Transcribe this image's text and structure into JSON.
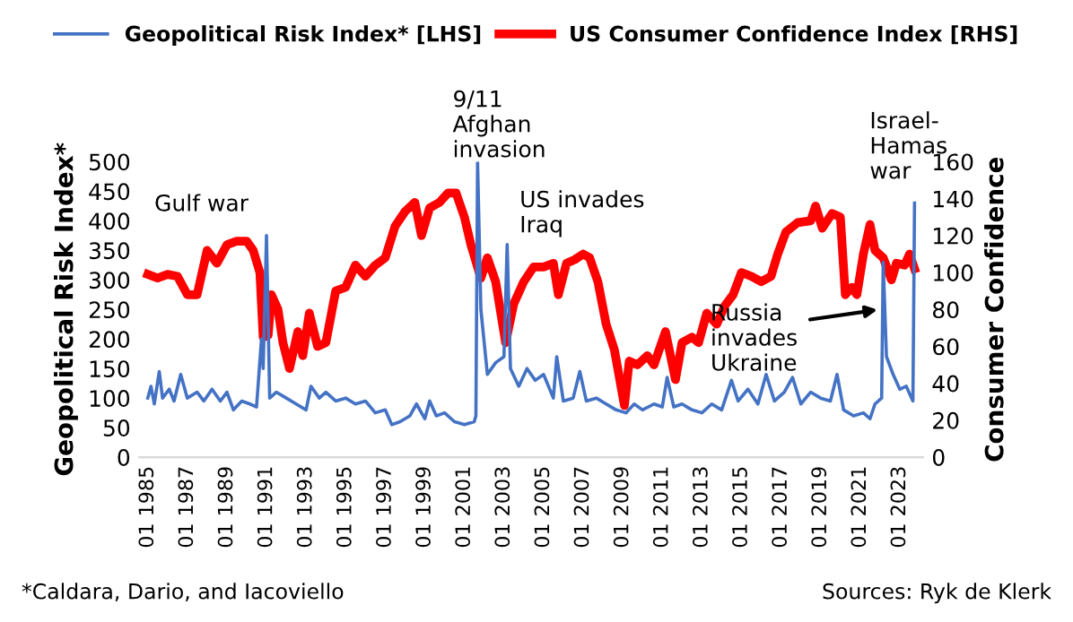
{
  "chart_data": {
    "type": "line",
    "ylabel": "Geopolitical Risk Index*",
    "y2label": "Consumer Confidence",
    "xlim": [
      "1984-08",
      "2024-03"
    ],
    "xticks": [
      {
        "value": "1985-01",
        "label": "01 1985"
      },
      {
        "value": "1987-01",
        "label": "01 1987"
      },
      {
        "value": "1989-01",
        "label": "01 1989"
      },
      {
        "value": "1991-01",
        "label": "01 1991"
      },
      {
        "value": "1993-01",
        "label": "01 1993"
      },
      {
        "value": "1995-01",
        "label": "01 1995"
      },
      {
        "value": "1997-01",
        "label": "01 1997"
      },
      {
        "value": "1999-01",
        "label": "01 1999"
      },
      {
        "value": "2001-01",
        "label": "01 2001"
      },
      {
        "value": "2003-01",
        "label": "01 2003"
      },
      {
        "value": "2005-01",
        "label": "01 2005"
      },
      {
        "value": "2007-01",
        "label": "01 2007"
      },
      {
        "value": "2009-01",
        "label": "01 2009"
      },
      {
        "value": "2011-01",
        "label": "01 2011"
      },
      {
        "value": "2013-01",
        "label": "01 2013"
      },
      {
        "value": "2015-01",
        "label": "01 2015"
      },
      {
        "value": "2017-01",
        "label": "01 2017"
      },
      {
        "value": "2019-01",
        "label": "01 2019"
      },
      {
        "value": "2021-01",
        "label": "01 2021"
      },
      {
        "value": "2023-01",
        "label": "01 2023"
      }
    ],
    "ylim": [
      0,
      500
    ],
    "yticks": [
      0,
      50,
      100,
      150,
      200,
      250,
      300,
      350,
      400,
      450,
      500
    ],
    "y2lim": [
      0,
      160
    ],
    "y2ticks": [
      0,
      20,
      40,
      60,
      80,
      100,
      120,
      140,
      160
    ],
    "grid": false,
    "legend": "top",
    "marker": "none",
    "series": [
      {
        "name": "Geopolitical Risk Index* [LHS]",
        "color": "#4472c4",
        "x": [
          "1985-01",
          "1985-03",
          "1985-05",
          "1985-08",
          "1985-10",
          "1986-02",
          "1986-05",
          "1986-09",
          "1987-01",
          "1987-07",
          "1987-11",
          "1988-04",
          "1988-09",
          "1989-01",
          "1989-05",
          "1989-10",
          "1990-03",
          "1990-07",
          "1990-10",
          "1990-11",
          "1991-01",
          "1991-03",
          "1991-07",
          "1992-01",
          "1992-07",
          "1993-01",
          "1993-04",
          "1993-09",
          "1994-01",
          "1994-07",
          "1995-01",
          "1995-07",
          "1996-01",
          "1996-07",
          "1997-01",
          "1997-05",
          "1997-10",
          "1998-04",
          "1998-08",
          "1999-01",
          "1999-04",
          "1999-08",
          "2000-01",
          "2000-07",
          "2001-01",
          "2001-07",
          "2001-08",
          "2001-09",
          "2001-11",
          "2002-03",
          "2002-08",
          "2003-01",
          "2003-03",
          "2003-05",
          "2003-10",
          "2004-03",
          "2004-08",
          "2005-01",
          "2005-07",
          "2005-09",
          "2006-01",
          "2006-07",
          "2006-11",
          "2007-03",
          "2007-09",
          "2008-03",
          "2008-09",
          "2009-03",
          "2009-08",
          "2010-01",
          "2010-08",
          "2011-01",
          "2011-04",
          "2011-08",
          "2012-01",
          "2012-07",
          "2013-01",
          "2013-07",
          "2014-01",
          "2014-07",
          "2014-11",
          "2015-05",
          "2015-11",
          "2016-04",
          "2016-09",
          "2017-03",
          "2017-08",
          "2018-01",
          "2018-07",
          "2019-01",
          "2019-07",
          "2019-11",
          "2020-03",
          "2020-09",
          "2021-03",
          "2021-07",
          "2021-10",
          "2022-02",
          "2022-03",
          "2022-05",
          "2022-09",
          "2023-01",
          "2023-05",
          "2023-09",
          "2023-10"
        ],
        "values": [
          100,
          120,
          90,
          145,
          100,
          115,
          95,
          140,
          100,
          110,
          95,
          115,
          95,
          110,
          80,
          95,
          90,
          85,
          200,
          150,
          375,
          100,
          110,
          100,
          90,
          80,
          120,
          100,
          110,
          95,
          100,
          90,
          95,
          75,
          80,
          55,
          60,
          70,
          90,
          65,
          95,
          70,
          75,
          60,
          55,
          60,
          70,
          500,
          250,
          140,
          160,
          170,
          360,
          150,
          120,
          150,
          130,
          140,
          100,
          170,
          95,
          100,
          145,
          95,
          100,
          90,
          80,
          75,
          90,
          80,
          90,
          85,
          135,
          85,
          90,
          80,
          75,
          90,
          80,
          130,
          95,
          115,
          90,
          140,
          95,
          110,
          135,
          90,
          110,
          100,
          95,
          140,
          80,
          70,
          75,
          65,
          90,
          100,
          330,
          170,
          140,
          115,
          120,
          95,
          430
        ]
      },
      {
        "name": "US Consumer Confidence Index [RHS]",
        "color": "#ff0000",
        "axis": "y2",
        "x": [
          "1985-01",
          "1985-07",
          "1986-01",
          "1986-07",
          "1987-01",
          "1987-07",
          "1988-01",
          "1988-07",
          "1989-01",
          "1989-07",
          "1990-01",
          "1990-05",
          "1990-09",
          "1990-11",
          "1991-02",
          "1991-04",
          "1991-08",
          "1991-11",
          "1992-03",
          "1992-08",
          "1992-11",
          "1993-03",
          "1993-08",
          "1994-01",
          "1994-07",
          "1995-01",
          "1995-07",
          "1996-01",
          "1996-07",
          "1997-01",
          "1997-07",
          "1998-01",
          "1998-07",
          "1998-11",
          "1999-04",
          "1999-10",
          "2000-03",
          "2000-08",
          "2001-01",
          "2001-05",
          "2001-11",
          "2002-03",
          "2002-08",
          "2003-02",
          "2003-07",
          "2004-01",
          "2004-07",
          "2005-01",
          "2005-07",
          "2005-10",
          "2006-03",
          "2006-08",
          "2007-01",
          "2007-05",
          "2007-10",
          "2008-03",
          "2008-08",
          "2009-02",
          "2009-05",
          "2009-10",
          "2010-04",
          "2010-08",
          "2011-03",
          "2011-09",
          "2012-01",
          "2012-07",
          "2012-11",
          "2013-04",
          "2013-10",
          "2014-03",
          "2014-08",
          "2015-01",
          "2015-07",
          "2016-01",
          "2016-07",
          "2016-11",
          "2017-04",
          "2017-11",
          "2018-07",
          "2018-10",
          "2019-02",
          "2019-08",
          "2020-01",
          "2020-04",
          "2020-08",
          "2020-11",
          "2021-03",
          "2021-07",
          "2021-10",
          "2022-03",
          "2022-08",
          "2022-11",
          "2023-04",
          "2023-07",
          "2023-10"
        ],
        "values": [
          99,
          97,
          99,
          98,
          88,
          88,
          112,
          105,
          115,
          117,
          117,
          112,
          100,
          65,
          66,
          88,
          80,
          62,
          48,
          68,
          55,
          78,
          60,
          62,
          90,
          92,
          104,
          98,
          104,
          108,
          125,
          133,
          138,
          120,
          135,
          138,
          143,
          143,
          130,
          115,
          97,
          108,
          95,
          62,
          83,
          95,
          103,
          103,
          105,
          88,
          105,
          107,
          110,
          108,
          95,
          72,
          58,
          28,
          52,
          50,
          55,
          50,
          68,
          42,
          62,
          65,
          62,
          78,
          72,
          82,
          88,
          100,
          98,
          95,
          98,
          110,
          122,
          127,
          128,
          136,
          124,
          132,
          130,
          88,
          92,
          88,
          110,
          126,
          112,
          108,
          96,
          105,
          104,
          110,
          102
        ]
      }
    ],
    "annotations": [
      {
        "text": "Gulf war",
        "x": "1991-01",
        "y": 375
      },
      {
        "text": "9/11\nAfghan\ninvasion",
        "x": "2001-09",
        "y": 500
      },
      {
        "text": "US invades\nIraq",
        "x": "2003-03",
        "y": 360
      },
      {
        "text": "Russia\ninvades\nUkraine",
        "x": "2022-01",
        "y": 250
      },
      {
        "text": "Israel-\nHamas\nwar",
        "x": "2023-10",
        "y": 430
      },
      "*Caldara, Dario, and Iacoviello",
      "Sources: Ryk de Klerk"
    ]
  }
}
